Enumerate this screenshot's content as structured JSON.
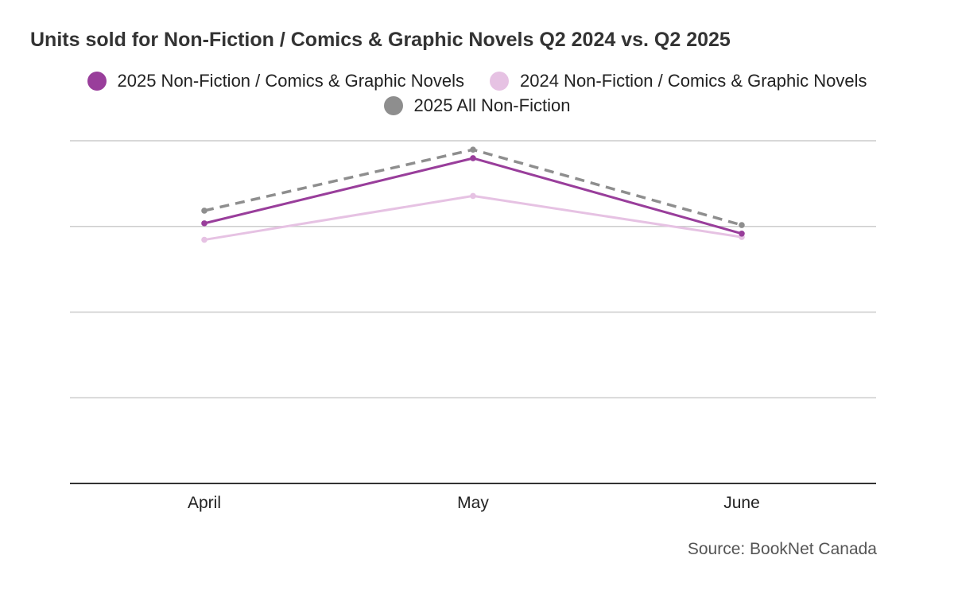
{
  "chart_data": {
    "type": "line",
    "title": "Units sold for Non-Fiction / Comics & Graphic Novels Q2 2024 vs. Q2 2025",
    "categories": [
      "April",
      "May",
      "June"
    ],
    "series": [
      {
        "name": "2025 Non-Fiction / Comics & Graphic Novels",
        "values": [
          75.9,
          94.9,
          72.9
        ],
        "color": "#993e9b",
        "dash": "solid"
      },
      {
        "name": "2024 Non-Fiction / Comics & Graphic Novels",
        "values": [
          71.1,
          83.9,
          71.9
        ],
        "color": "#e6c2e3",
        "dash": "solid"
      },
      {
        "name": "2025 All Non-Fiction",
        "values": [
          79.6,
          97.4,
          75.4
        ],
        "color": "#8e8e8e",
        "dash": "dashed"
      }
    ],
    "ylim": [
      0,
      100
    ],
    "gridlines": [
      25,
      50,
      75,
      100
    ],
    "xlabel": "",
    "ylabel": "",
    "legend_position": "top"
  },
  "source": "Source: BookNet Canada"
}
